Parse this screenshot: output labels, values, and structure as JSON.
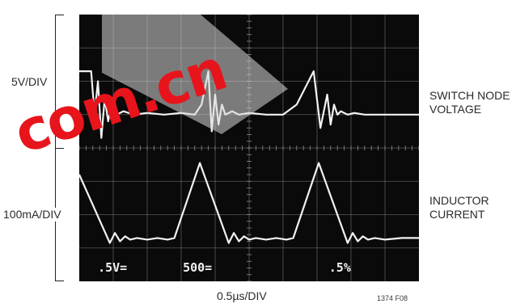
{
  "chart_data": {
    "type": "line",
    "title": "",
    "xlabel": "0.5µs/DIV",
    "figure_id": "1374 F08",
    "divisions": {
      "x": 10,
      "y": 8
    },
    "channel_labels": [
      ".5V=",
      "500=",
      ".5%"
    ],
    "series": [
      {
        "name": "SWITCH NODE VOLTAGE",
        "scale": "5V/DIV",
        "x": [
          0.0,
          0.35,
          0.45,
          0.55,
          0.65,
          0.75,
          0.85,
          0.95,
          1.1,
          1.3,
          1.6,
          2.0,
          2.5,
          3.0,
          3.4,
          3.6,
          3.8,
          3.9,
          4.0,
          4.1,
          4.2,
          4.3,
          4.5,
          4.7,
          5.0,
          5.5,
          6.0,
          6.4,
          6.9,
          7.1,
          7.3,
          7.4,
          7.5,
          7.6,
          7.7,
          7.9,
          8.1,
          8.4,
          9.0,
          10.0
        ],
        "values": [
          6.3,
          6.3,
          5.0,
          6.0,
          4.3,
          5.5,
          4.8,
          5.3,
          5.0,
          5.1,
          5.0,
          5.05,
          5.0,
          5.05,
          5.0,
          5.3,
          6.3,
          4.5,
          5.6,
          4.7,
          5.3,
          5.0,
          5.1,
          5.0,
          5.05,
          5.0,
          5.0,
          5.3,
          6.3,
          4.6,
          5.6,
          4.7,
          5.3,
          5.0,
          5.1,
          5.0,
          5.05,
          5.0,
          5.0,
          5.0
        ]
      },
      {
        "name": "INDUCTOR CURRENT",
        "scale": "100mA/DIV",
        "x": [
          0.0,
          0.9,
          1.05,
          1.2,
          1.35,
          1.5,
          1.7,
          2.0,
          2.3,
          2.6,
          2.8,
          3.55,
          4.4,
          4.55,
          4.7,
          4.85,
          5.0,
          5.2,
          5.5,
          5.8,
          6.1,
          6.3,
          7.05,
          7.9,
          8.05,
          8.2,
          8.35,
          8.5,
          8.7,
          9.0,
          9.5,
          10.0
        ],
        "values": [
          3.2,
          1.15,
          1.45,
          1.2,
          1.35,
          1.25,
          1.3,
          1.25,
          1.3,
          1.25,
          1.3,
          3.55,
          1.15,
          1.45,
          1.2,
          1.35,
          1.25,
          1.3,
          1.25,
          1.3,
          1.25,
          1.3,
          3.55,
          1.15,
          1.45,
          1.2,
          1.35,
          1.25,
          1.3,
          1.25,
          1.3,
          1.3
        ]
      }
    ],
    "xlim": [
      0,
      10
    ],
    "ylim": [
      0,
      8
    ],
    "grid": true
  },
  "watermark": {
    "text": "com.cn"
  },
  "colors": {
    "screen": "#0a0a0a",
    "trace": "#f2f2f2",
    "grid": "#8c8c8c",
    "watermark": "#e8141b"
  }
}
